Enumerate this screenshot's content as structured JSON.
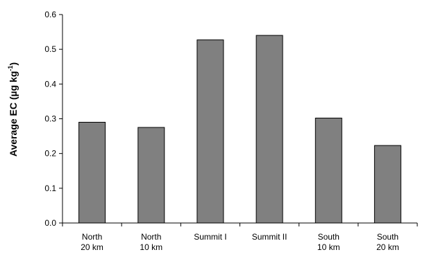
{
  "chart_data": {
    "type": "bar",
    "categories": [
      [
        "North",
        "20 km"
      ],
      [
        "North",
        "10 km"
      ],
      [
        "Summit I"
      ],
      [
        "Summit II"
      ],
      [
        "South",
        "10 km"
      ],
      [
        "South",
        "20 km"
      ]
    ],
    "values": [
      0.29,
      0.275,
      0.527,
      0.54,
      0.302,
      0.223
    ],
    "title": "",
    "xlabel": "",
    "ylabel": {
      "main": "Average EC (µg kg",
      "sup": "-1",
      "close": ")"
    },
    "ylim": [
      0,
      0.6
    ],
    "yticks": [
      0.0,
      0.1,
      0.2,
      0.3,
      0.4,
      0.5,
      0.6
    ],
    "ytick_labels": [
      "0.0",
      "0.1",
      "0.2",
      "0.3",
      "0.4",
      "0.5",
      "0.6"
    ],
    "grid": false,
    "legend": "none",
    "bar_color": "#808080",
    "bar_edge_color": "#000000"
  }
}
